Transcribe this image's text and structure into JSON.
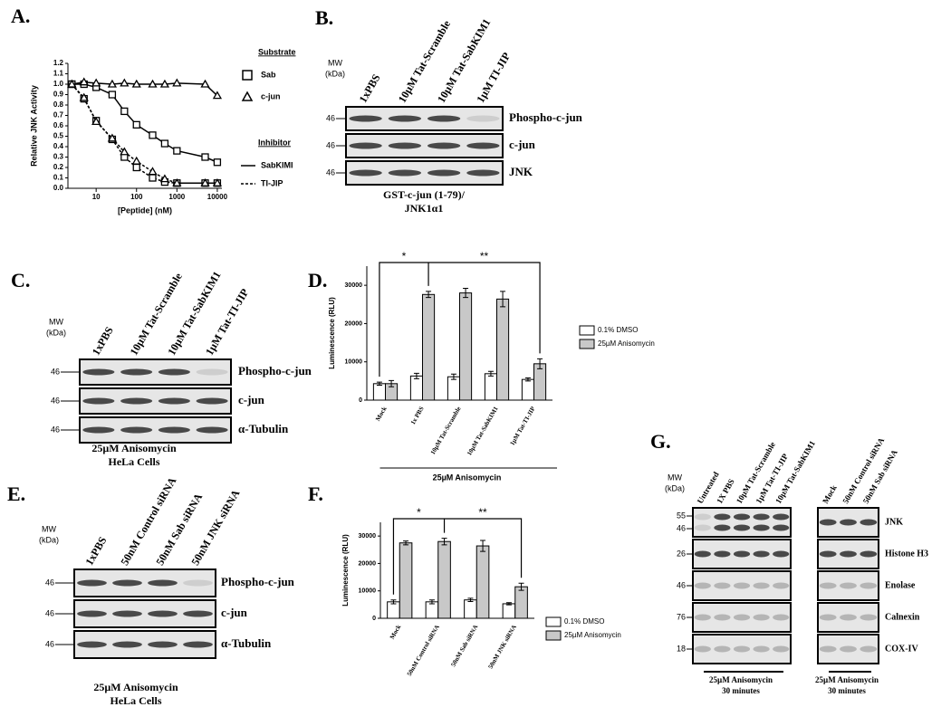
{
  "panel_labels": [
    "A.",
    "B.",
    "C.",
    "D.",
    "E.",
    "F.",
    "G."
  ],
  "chart_data": [
    {
      "type": "line",
      "xscale": "log",
      "x_label": "[Peptide] (nM)",
      "y_label": "Relative JNK Activity",
      "xlim": [
        2,
        13000
      ],
      "xticks": [
        10,
        100,
        1000,
        10000
      ],
      "ylim": [
        0,
        1.2
      ],
      "yticks": [
        {
          "value": 0,
          "label": "0.0"
        },
        {
          "value": 0.1,
          "label": "0.1"
        },
        {
          "value": 0.2,
          "label": "0.2"
        },
        {
          "value": 0.3,
          "label": "0.3"
        },
        {
          "value": 0.4,
          "label": "0.4"
        },
        {
          "value": 0.5,
          "label": "0.5"
        },
        {
          "value": 0.6,
          "label": "0.6"
        },
        {
          "value": 0.7,
          "label": "0.7"
        },
        {
          "value": 0.8,
          "label": "0.8"
        },
        {
          "value": 0.9,
          "label": "0.9"
        },
        {
          "value": 1,
          "label": "1.0"
        },
        {
          "value": 1.1,
          "label": "1.1"
        },
        {
          "value": 1.2,
          "label": "1.2"
        }
      ],
      "x": [
        2.5,
        5,
        10,
        25,
        50,
        100,
        250,
        500,
        1000,
        5000,
        10000
      ],
      "series": [
        {
          "marker": "square",
          "dash": "solid",
          "color": "#000000",
          "values": [
            1.0,
            1.0,
            0.97,
            0.9,
            0.74,
            0.61,
            0.51,
            0.43,
            0.36,
            0.3,
            0.25
          ]
        },
        {
          "marker": "triangle",
          "dash": "solid",
          "color": "#000000",
          "values": [
            1.0,
            1.02,
            1.01,
            1.0,
            1.01,
            1.0,
            1.0,
            1.0,
            1.01,
            1.0,
            0.89
          ]
        },
        {
          "marker": "square",
          "dash": "dashed",
          "color": "#000000",
          "values": [
            1.0,
            0.86,
            0.65,
            0.47,
            0.3,
            0.2,
            0.1,
            0.06,
            0.05,
            0.05,
            0.05
          ]
        },
        {
          "marker": "triangle",
          "dash": "dashed",
          "color": "#000000",
          "values": [
            1.0,
            0.87,
            0.64,
            0.48,
            0.35,
            0.26,
            0.16,
            0.09,
            0.05,
            0.05,
            0.05
          ]
        }
      ],
      "legend": {
        "substrate_title": "Substrate",
        "substrate_items": [
          "Sab",
          "c-jun"
        ],
        "inhibitor_title": "Inhibitor",
        "inhibitor_items": [
          "SabKIMI",
          "TI-JIP"
        ]
      }
    },
    {
      "type": "bar",
      "y_label": "Luminescence (RLU)",
      "categories": [
        "Mock",
        "1x PBS",
        "10µM Tat-Scramble",
        "10µM Tat-SabKIM1",
        "1µM Tat-TI-JIP"
      ],
      "ylim": [
        0,
        35000
      ],
      "yticks": [
        0,
        10000,
        20000,
        30000
      ],
      "series": [
        {
          "name": "0.1% DMSO",
          "color": "#ffffff",
          "values": [
            4300,
            6300,
            6100,
            6900,
            5400
          ],
          "errors": [
            400,
            700,
            700,
            600,
            400
          ]
        },
        {
          "name": "25µM Anisomycin",
          "color": "#c8c8c8",
          "values": [
            4300,
            27600,
            28000,
            26400,
            9500
          ],
          "errors": [
            800,
            800,
            1200,
            2000,
            1300
          ]
        }
      ],
      "annotations": [
        "*",
        "**"
      ],
      "group_label": "25µM Anisomycin"
    },
    {
      "type": "bar",
      "y_label": "Luminescence (RLU)",
      "categories": [
        "Mock",
        "50nM Control siRNA",
        "50nM Sab siRNA",
        "50nM JNK siRNA"
      ],
      "ylim": [
        0,
        35000
      ],
      "yticks": [
        0,
        10000,
        20000,
        30000
      ],
      "series": [
        {
          "name": "0.1% DMSO",
          "color": "#ffffff",
          "values": [
            6000,
            6000,
            6700,
            5300
          ],
          "errors": [
            700,
            700,
            600,
            400
          ]
        },
        {
          "name": "25µM Anisomycin",
          "color": "#c8c8c8",
          "values": [
            27500,
            28000,
            26400,
            11500
          ],
          "errors": [
            700,
            1200,
            2000,
            1300
          ]
        }
      ],
      "annotations": [
        "*",
        "**"
      ]
    }
  ],
  "blots": [
    {
      "mw_header": [
        "MW",
        "(kDa)"
      ],
      "lanes": [
        "1xPBS",
        "10µM Tat-Scramble",
        "10µM Tat-SabKIM1",
        "1µM TI-JIP"
      ],
      "rows": [
        {
          "mw": [
            "46"
          ],
          "label": "Phospho-c-jun"
        },
        {
          "mw": [
            "46"
          ],
          "label": "c-jun"
        },
        {
          "mw": [
            "46"
          ],
          "label": "JNK"
        }
      ],
      "caption": [
        "GST-c-jun (1-79)/",
        "JNK1α1"
      ]
    },
    {
      "mw_header": [
        "MW",
        "(kDa)"
      ],
      "lanes": [
        "1xPBS",
        "10µM Tat-Scramble",
        "10µM Tat-SabKIM1",
        "1µM Tat-TI-JIP"
      ],
      "rows": [
        {
          "mw": [
            "46"
          ],
          "label": "Phospho-c-jun"
        },
        {
          "mw": [
            "46"
          ],
          "label": "c-jun"
        },
        {
          "mw": [
            "46"
          ],
          "label": "α-Tubulin"
        }
      ],
      "caption": [
        "25µM Anisomycin",
        "HeLa Cells"
      ]
    },
    {
      "mw_header": [
        "MW",
        "(kDa)"
      ],
      "lanes": [
        "1xPBS",
        "50nM Control siRNA",
        "50nM Sab siRNA",
        "50nM JNK siRNA"
      ],
      "rows": [
        {
          "mw": [
            "46"
          ],
          "label": "Phospho-c-jun"
        },
        {
          "mw": [
            "46"
          ],
          "label": "c-jun"
        },
        {
          "mw": [
            "46"
          ],
          "label": "α-Tubulin"
        }
      ],
      "caption": [
        "25µM Anisomycin",
        "HeLa Cells"
      ]
    },
    {
      "mw_header": [
        "MW",
        "(kDa)"
      ],
      "lanes": [
        "Untreated",
        "1X PBS",
        "10µM Tat-Scramble",
        "1µM Tat-TI-JIP",
        "10µM Tat-SabKIM1"
      ],
      "rows": [
        {
          "mw": [
            "55",
            "46"
          ]
        },
        {
          "mw": [
            "26"
          ]
        },
        {
          "mw": [
            "46"
          ]
        },
        {
          "mw": [
            "76"
          ]
        },
        {
          "mw": [
            "18"
          ]
        }
      ],
      "caption": [
        "25µM Anisomycin",
        "30 minutes"
      ]
    },
    {
      "lanes": [
        "Mock",
        "50nM Control siRNA",
        "50nM Sab siRNA"
      ],
      "rows": [
        {
          "label": "JNK"
        },
        {
          "label": "Histone H3"
        },
        {
          "label": "Enolase"
        },
        {
          "label": "Calnexin"
        },
        {
          "label": "COX-IV"
        }
      ],
      "caption": [
        "25µM Anisomycin",
        "30 minutes"
      ]
    }
  ]
}
